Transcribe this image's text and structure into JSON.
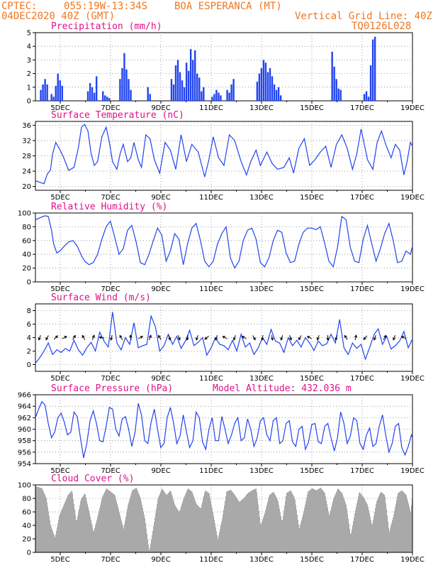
{
  "header": {
    "source": "CPTEC:",
    "coords": "055:19W-13:34S",
    "station": "BOA ESPERANCA (MT)",
    "date": "04DEC2020 40Z (GMT)",
    "grid_line": "Vertical Grid Line: 40Z",
    "code": "TQ0126L028"
  },
  "x_labels": [
    "5DEC",
    "7DEC",
    "9DEC",
    "11DEC",
    "13DEC",
    "15DEC",
    "17DEC",
    "19DEC"
  ],
  "chart_data": [
    {
      "id": "precipitation",
      "type": "bar",
      "title": "Precipitation (mm/h)",
      "ylim": [
        0,
        5
      ],
      "yticks": [
        0,
        1,
        2,
        3,
        4,
        5
      ],
      "x": [
        0.25,
        0.35,
        0.45,
        0.55,
        0.75,
        0.85,
        0.95,
        1.05,
        1.15,
        1.25,
        2.45,
        2.55,
        2.65,
        2.75,
        2.85,
        3.15,
        3.25,
        3.35,
        3.45,
        3.95,
        4.05,
        4.15,
        4.25,
        4.35,
        4.45,
        5.25,
        5.35,
        6.35,
        6.45,
        6.55,
        6.65,
        6.75,
        6.85,
        6.95,
        7.05,
        7.15,
        7.25,
        7.35,
        7.45,
        7.55,
        7.65,
        7.75,
        7.85,
        8.25,
        8.35,
        8.45,
        8.55,
        8.65,
        8.95,
        9.05,
        9.15,
        9.25,
        10.35,
        10.45,
        10.55,
        10.65,
        10.75,
        10.85,
        10.95,
        11.05,
        11.15,
        11.25,
        11.35,
        11.45,
        13.85,
        13.95,
        14.05,
        14.15,
        14.25,
        15.35,
        15.45,
        15.55,
        15.65,
        15.75,
        15.85
      ],
      "values": [
        0.8,
        1.2,
        1.6,
        1.2,
        0.5,
        0.3,
        1.1,
        2.0,
        1.5,
        1.1,
        0.7,
        1.3,
        1.0,
        0.6,
        1.8,
        0.7,
        0.4,
        0.3,
        0.2,
        1.6,
        2.4,
        3.5,
        2.3,
        1.6,
        0.8,
        1.0,
        0.5,
        1.6,
        1.2,
        2.6,
        3.0,
        2.1,
        1.5,
        1.0,
        2.8,
        2.2,
        3.8,
        3.0,
        3.7,
        2.0,
        1.7,
        0.7,
        1.0,
        0.3,
        0.5,
        0.8,
        0.6,
        0.4,
        0.8,
        0.6,
        1.2,
        1.6,
        1.4,
        2.0,
        2.4,
        3.0,
        2.8,
        2.1,
        2.4,
        1.8,
        1.2,
        0.8,
        1.0,
        0.4,
        3.6,
        2.5,
        1.6,
        0.9,
        0.8,
        0.5,
        0.7,
        0.3,
        2.6,
        4.5,
        4.7
      ],
      "color": "#2244ee"
    },
    {
      "id": "temperature",
      "type": "line",
      "title": "Surface Temperature (nC)",
      "ylim": [
        19,
        37
      ],
      "yticks": [
        20,
        24,
        28,
        32,
        36
      ],
      "x": [
        0.0,
        0.25,
        0.4,
        0.55,
        0.7,
        0.8,
        0.95,
        1.1,
        1.3,
        1.55,
        1.8,
        2.0,
        2.15,
        2.3,
        2.45,
        2.6,
        2.75,
        2.9,
        3.1,
        3.3,
        3.45,
        3.6,
        3.8,
        3.95,
        4.1,
        4.3,
        4.45,
        4.6,
        4.8,
        4.95,
        5.15,
        5.35,
        5.55,
        5.8,
        6.05,
        6.3,
        6.55,
        6.8,
        7.05,
        7.3,
        7.6,
        7.9,
        8.1,
        8.3,
        8.55,
        8.8,
        9.05,
        9.3,
        9.6,
        9.85,
        10.05,
        10.3,
        10.5,
        10.8,
        11.05,
        11.3,
        11.6,
        11.85,
        12.05,
        12.3,
        12.55,
        12.8,
        13.05,
        13.3,
        13.55,
        13.8,
        14.05,
        14.3,
        14.55,
        14.8,
        15.0,
        15.2,
        15.5,
        15.75,
        15.95,
        16.15,
        16.35,
        16.6,
        16.8,
        17.0,
        17.2,
        17.35,
        17.5,
        17.6
      ],
      "values": [
        21.5,
        21.0,
        20.7,
        23.2,
        24.3,
        28.5,
        31.5,
        30.0,
        27.8,
        24.2,
        25.0,
        30.0,
        35.5,
        36.2,
        34.5,
        28.5,
        25.5,
        26.5,
        33.0,
        35.5,
        31.5,
        26.5,
        24.5,
        28.5,
        31.0,
        26.5,
        27.5,
        31.5,
        27.0,
        25.0,
        33.5,
        32.5,
        27.0,
        23.5,
        31.5,
        29.5,
        24.5,
        33.5,
        26.5,
        31.0,
        29.0,
        22.5,
        27.0,
        33.0,
        27.5,
        25.5,
        33.5,
        32.0,
        26.5,
        23.0,
        26.5,
        29.5,
        25.5,
        29.0,
        26.0,
        24.5,
        25.0,
        27.5,
        23.5,
        30.0,
        32.5,
        25.5,
        27.0,
        29.0,
        30.5,
        25.0,
        31.0,
        33.5,
        30.0,
        24.5,
        28.5,
        35.0,
        27.0,
        24.5,
        31.5,
        34.5,
        31.0,
        27.5,
        31.0,
        29.5,
        23.0,
        26.5,
        31.5,
        30.5
      ],
      "color": "#2244ee"
    },
    {
      "id": "humidity",
      "type": "line",
      "title": "Relative Humidity (%)",
      "ylim": [
        0,
        100
      ],
      "yticks": [
        0,
        20,
        40,
        60,
        80,
        100
      ],
      "x": [
        0.0,
        0.2,
        0.45,
        0.6,
        0.75,
        0.85,
        1.0,
        1.15,
        1.35,
        1.55,
        1.75,
        1.95,
        2.15,
        2.3,
        2.5,
        2.7,
        2.9,
        3.1,
        3.3,
        3.5,
        3.7,
        3.9,
        4.1,
        4.3,
        4.5,
        4.7,
        4.9,
        5.1,
        5.3,
        5.5,
        5.7,
        5.9,
        6.1,
        6.3,
        6.5,
        6.7,
        6.9,
        7.1,
        7.3,
        7.5,
        7.7,
        7.9,
        8.1,
        8.3,
        8.5,
        8.7,
        8.9,
        9.1,
        9.3,
        9.5,
        9.7,
        9.9,
        10.1,
        10.3,
        10.5,
        10.7,
        10.9,
        11.1,
        11.3,
        11.5,
        11.7,
        11.9,
        12.1,
        12.3,
        12.5,
        12.7,
        12.9,
        13.1,
        13.3,
        13.5,
        13.7,
        13.9,
        14.1,
        14.3,
        14.5,
        14.7,
        14.9,
        15.1,
        15.3,
        15.5,
        15.7,
        15.9,
        16.1,
        16.3,
        16.5,
        16.7,
        16.9,
        17.1,
        17.3,
        17.5,
        17.6
      ],
      "values": [
        90,
        93,
        96,
        95,
        75,
        55,
        42,
        45,
        52,
        58,
        60,
        52,
        38,
        30,
        25,
        28,
        40,
        62,
        80,
        88,
        65,
        40,
        48,
        75,
        82,
        58,
        28,
        25,
        40,
        60,
        78,
        68,
        30,
        45,
        70,
        62,
        25,
        55,
        78,
        85,
        60,
        30,
        22,
        30,
        55,
        70,
        80,
        35,
        20,
        30,
        60,
        75,
        78,
        62,
        28,
        22,
        35,
        60,
        75,
        72,
        42,
        28,
        30,
        55,
        72,
        78,
        78,
        76,
        80,
        56,
        30,
        22,
        50,
        95,
        90,
        50,
        30,
        28,
        62,
        82,
        55,
        30,
        48,
        70,
        85,
        60,
        28,
        30,
        45,
        40,
        52
      ],
      "color": "#2244ee"
    },
    {
      "id": "wind",
      "type": "line",
      "title": "Surface Wind (m/s)",
      "ylim": [
        -1,
        9
      ],
      "yticks": [
        0,
        2,
        4,
        6,
        8
      ],
      "x": [
        0.0,
        0.2,
        0.4,
        0.6,
        0.8,
        1.0,
        1.2,
        1.4,
        1.6,
        1.8,
        2.0,
        2.2,
        2.4,
        2.6,
        2.8,
        3.0,
        3.2,
        3.4,
        3.6,
        3.8,
        4.0,
        4.2,
        4.4,
        4.6,
        4.8,
        5.0,
        5.2,
        5.4,
        5.6,
        5.8,
        6.0,
        6.2,
        6.4,
        6.6,
        6.8,
        7.0,
        7.2,
        7.4,
        7.6,
        7.8,
        8.0,
        8.2,
        8.4,
        8.6,
        8.8,
        9.0,
        9.2,
        9.4,
        9.6,
        9.8,
        10.0,
        10.2,
        10.4,
        10.6,
        10.8,
        11.0,
        11.2,
        11.4,
        11.6,
        11.8,
        12.0,
        12.2,
        12.4,
        12.6,
        12.8,
        13.0,
        13.2,
        13.4,
        13.6,
        13.8,
        14.0,
        14.2,
        14.4,
        14.6,
        14.8,
        15.0,
        15.2,
        15.4,
        15.6,
        15.8,
        16.0,
        16.2,
        16.4,
        16.6,
        16.8,
        17.0,
        17.2,
        17.4,
        17.6
      ],
      "values": [
        0.2,
        1.0,
        2.0,
        3.2,
        1.5,
        2.2,
        1.8,
        2.4,
        2.0,
        3.6,
        2.2,
        1.4,
        2.5,
        3.3,
        2.0,
        4.8,
        3.5,
        2.6,
        7.8,
        3.2,
        2.2,
        4.0,
        3.0,
        6.2,
        2.5,
        2.8,
        3.0,
        7.2,
        5.6,
        2.0,
        2.8,
        4.5,
        3.0,
        4.2,
        2.4,
        3.5,
        5.1,
        2.8,
        3.3,
        4.0,
        1.4,
        2.5,
        4.0,
        3.0,
        2.8,
        2.2,
        3.6,
        2.0,
        4.5,
        2.6,
        3.2,
        1.5,
        2.5,
        4.0,
        3.0,
        5.2,
        3.5,
        3.2,
        1.8,
        4.0,
        2.8,
        3.6,
        2.6,
        4.0,
        3.2,
        2.1,
        3.5,
        2.8,
        3.1,
        4.5,
        3.2,
        6.7,
        2.5,
        1.5,
        3.2,
        2.4,
        3.0,
        0.8,
        2.5,
        4.4,
        5.3,
        3.0,
        4.2,
        2.3,
        2.8,
        3.5,
        4.9,
        2.5,
        3.8
      ],
      "arrows_x": [
        0.2,
        0.55,
        0.95,
        1.35,
        1.8,
        2.25,
        2.7,
        3.1,
        3.55,
        4.0,
        4.45,
        4.9,
        5.35,
        5.8,
        6.25,
        6.7,
        7.1,
        7.55,
        8.0,
        8.45,
        8.85,
        9.3,
        9.75,
        10.2,
        10.6,
        11.05,
        11.5,
        11.9,
        12.35,
        12.8,
        13.2,
        13.65,
        14.05,
        14.5,
        14.95,
        15.4,
        15.85,
        16.3,
        16.75,
        17.2
      ],
      "arrows_angle": [
        200,
        210,
        45,
        60,
        30,
        330,
        20,
        280,
        195,
        330,
        350,
        60,
        20,
        330,
        160,
        160,
        190,
        200,
        230,
        200,
        300,
        200,
        300,
        150,
        190,
        170,
        200,
        160,
        210,
        300,
        200,
        180,
        200,
        330,
        10,
        220,
        200,
        30,
        200,
        300
      ],
      "color": "#2244ee"
    },
    {
      "id": "pressure",
      "type": "line",
      "title": "Surface Pressure (hPa)",
      "annotation": "Model Altitude: 432.036 m",
      "ylim": [
        954,
        966
      ],
      "yticks": [
        954,
        956,
        958,
        960,
        962,
        964,
        966
      ],
      "x": [
        0.0,
        0.15,
        0.3,
        0.45,
        0.6,
        0.75,
        0.9,
        1.05,
        1.2,
        1.35,
        1.5,
        1.65,
        1.8,
        1.95,
        2.1,
        2.25,
        2.4,
        2.55,
        2.7,
        2.85,
        3.0,
        3.15,
        3.3,
        3.45,
        3.6,
        3.75,
        3.9,
        4.05,
        4.2,
        4.35,
        4.5,
        4.65,
        4.8,
        4.95,
        5.1,
        5.25,
        5.4,
        5.55,
        5.7,
        5.85,
        6.0,
        6.15,
        6.3,
        6.45,
        6.6,
        6.75,
        6.9,
        7.05,
        7.2,
        7.35,
        7.5,
        7.65,
        7.8,
        7.95,
        8.1,
        8.25,
        8.4,
        8.55,
        8.7,
        8.85,
        9.0,
        9.15,
        9.3,
        9.45,
        9.6,
        9.75,
        9.9,
        10.05,
        10.2,
        10.35,
        10.5,
        10.65,
        10.8,
        10.95,
        11.1,
        11.25,
        11.4,
        11.55,
        11.7,
        11.85,
        12.0,
        12.15,
        12.3,
        12.45,
        12.6,
        12.75,
        12.9,
        13.05,
        13.2,
        13.35,
        13.5,
        13.65,
        13.8,
        13.95,
        14.1,
        14.25,
        14.4,
        14.55,
        14.7,
        14.85,
        15.0,
        15.15,
        15.3,
        15.45,
        15.6,
        15.75,
        15.9,
        16.05,
        16.2,
        16.35,
        16.5,
        16.65,
        16.8,
        16.95,
        17.1,
        17.25,
        17.4,
        17.55,
        17.6
      ],
      "values": [
        962.0,
        963.5,
        964.8,
        964.2,
        961.0,
        958.5,
        959.5,
        962.0,
        962.8,
        961.2,
        959.0,
        959.5,
        963.0,
        962.2,
        958.5,
        955.0,
        957.5,
        961.5,
        963.2,
        961.0,
        958.0,
        957.8,
        960.5,
        963.8,
        963.5,
        960.0,
        958.8,
        961.8,
        962.2,
        960.0,
        957.0,
        959.5,
        964.5,
        962.5,
        958.0,
        957.5,
        961.2,
        963.5,
        960.0,
        956.8,
        957.5,
        962.0,
        963.8,
        961.0,
        957.5,
        958.8,
        962.5,
        959.5,
        956.8,
        958.0,
        963.0,
        962.0,
        957.8,
        956.5,
        960.0,
        962.0,
        958.0,
        958.0,
        962.2,
        960.0,
        957.5,
        959.0,
        961.0,
        962.0,
        958.0,
        958.5,
        961.8,
        960.0,
        957.0,
        958.5,
        961.5,
        962.0,
        959.0,
        958.0,
        961.5,
        962.0,
        957.5,
        958.0,
        961.0,
        961.5,
        957.8,
        957.0,
        960.0,
        960.5,
        956.5,
        957.8,
        960.8,
        961.0,
        957.8,
        957.5,
        960.5,
        961.0,
        958.5,
        956.2,
        958.5,
        963.0,
        961.0,
        957.5,
        958.8,
        962.0,
        961.5,
        957.5,
        956.5,
        959.0,
        960.2,
        957.0,
        957.5,
        960.5,
        962.5,
        959.0,
        956.0,
        957.5,
        960.5,
        961.0,
        956.8,
        955.5,
        957.0,
        959.0,
        958.5
      ],
      "color": "#2244ee"
    },
    {
      "id": "cloud",
      "type": "area",
      "title": "Cloud Cover (%)",
      "ylim": [
        0,
        100
      ],
      "yticks": [
        0,
        20,
        40,
        60,
        80,
        100
      ],
      "x": [
        0.0,
        0.3,
        0.5,
        0.7,
        0.9,
        1.1,
        1.3,
        1.5,
        1.7,
        1.9,
        2.1,
        2.3,
        2.5,
        2.7,
        2.9,
        3.1,
        3.3,
        3.5,
        3.7,
        3.9,
        4.1,
        4.3,
        4.5,
        4.7,
        4.9,
        5.1,
        5.3,
        5.5,
        5.7,
        5.9,
        6.1,
        6.3,
        6.5,
        6.7,
        6.9,
        7.1,
        7.3,
        7.5,
        7.7,
        7.9,
        8.1,
        8.3,
        8.5,
        8.7,
        8.9,
        9.1,
        9.3,
        9.5,
        9.7,
        9.9,
        10.1,
        10.3,
        10.5,
        10.7,
        10.9,
        11.1,
        11.3,
        11.5,
        11.7,
        11.9,
        12.1,
        12.3,
        12.5,
        12.7,
        12.9,
        13.1,
        13.3,
        13.5,
        13.7,
        13.9,
        14.1,
        14.3,
        14.5,
        14.7,
        14.9,
        15.1,
        15.3,
        15.5,
        15.7,
        15.9,
        16.1,
        16.3,
        16.5,
        16.7,
        16.9,
        17.1,
        17.3,
        17.5,
        17.6
      ],
      "values": [
        98,
        95,
        80,
        40,
        22,
        55,
        70,
        85,
        92,
        45,
        78,
        88,
        60,
        30,
        55,
        82,
        95,
        90,
        85,
        60,
        35,
        70,
        92,
        96,
        80,
        50,
        2,
        40,
        80,
        95,
        85,
        92,
        70,
        60,
        80,
        95,
        90,
        72,
        65,
        92,
        88,
        55,
        20,
        50,
        90,
        93,
        85,
        75,
        80,
        88,
        92,
        95,
        40,
        60,
        85,
        90,
        78,
        45,
        88,
        92,
        80,
        35,
        60,
        90,
        95,
        92,
        96,
        88,
        55,
        80,
        95,
        88,
        70,
        25,
        60,
        90,
        82,
        70,
        40,
        75,
        90,
        85,
        30,
        55,
        88,
        92,
        85,
        60,
        90
      ],
      "color": "#a9a9a9"
    }
  ]
}
